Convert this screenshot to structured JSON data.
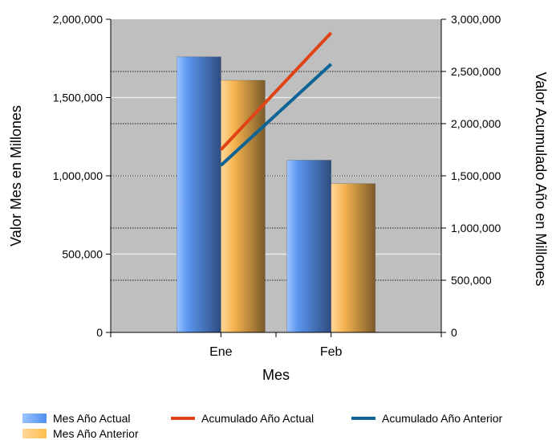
{
  "colors": {
    "actual": "#4f8fee",
    "anterior": "#ffbe4d",
    "acum_actual": "#e04316",
    "acum_anterior": "#0e6494",
    "plot_bg": "#bfbfbf"
  },
  "chart_data": {
    "type": "bar",
    "categories": [
      "Ene",
      "Feb"
    ],
    "xlabel": "Mes",
    "ylabel": "Valor Mes en Millones",
    "ylabel_right": "Valor Acumulado Año en Millones",
    "ylim": [
      0,
      2000000
    ],
    "ylim_right": [
      0,
      3000000
    ],
    "yticks": [
      0,
      500000,
      1000000,
      1500000,
      2000000
    ],
    "yticks_labels": [
      "0",
      "500,000",
      "1,000,000",
      "1,500,000",
      "2,000,000"
    ],
    "yticks_right": [
      0,
      500000,
      1000000,
      1500000,
      2000000,
      2500000,
      3000000
    ],
    "yticks_right_labels": [
      "0",
      "500,000",
      "1,000,000",
      "1,500,000",
      "2,000,000",
      "2,500,000",
      "3,000,000"
    ],
    "series": [
      {
        "name": "Mes Año Actual",
        "type": "bar",
        "axis": "left",
        "values": [
          1760000,
          1100000
        ]
      },
      {
        "name": "Mes Año Anterior",
        "type": "bar",
        "axis": "left",
        "values": [
          1610000,
          950000
        ]
      },
      {
        "name": "Acumulado Año Actual",
        "type": "line",
        "axis": "right",
        "values": [
          1750000,
          2870000
        ]
      },
      {
        "name": "Acumulado Año Anterior",
        "type": "line",
        "axis": "right",
        "values": [
          1600000,
          2570000
        ]
      }
    ],
    "grid": true,
    "legend_position": "bottom"
  }
}
